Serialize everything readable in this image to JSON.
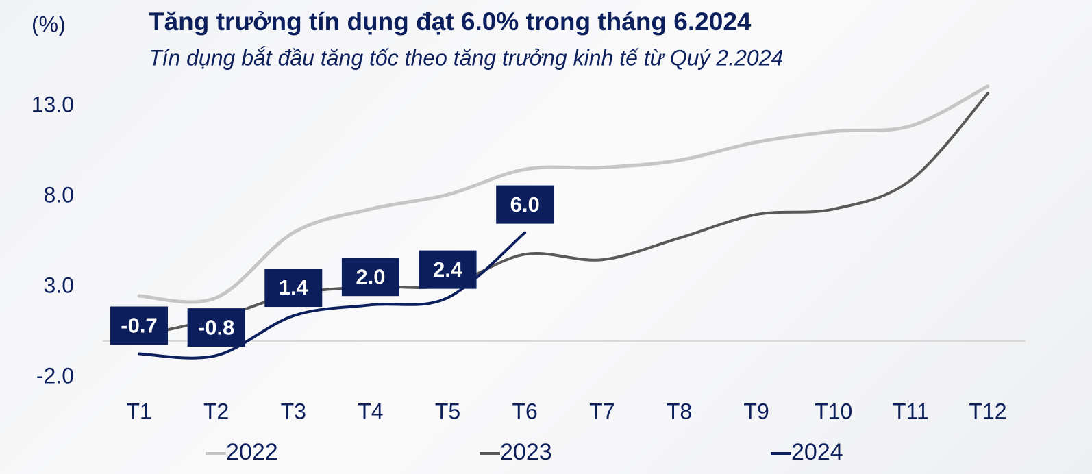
{
  "chart_data": {
    "type": "line",
    "unit_label": "(%)",
    "title": "Tăng trưởng tín dụng đạt 6.0% trong tháng 6.2024",
    "subtitle": "Tín dụng bắt đầu tăng tốc theo tăng trưởng kinh tế từ Quý 2.2024",
    "categories": [
      "T1",
      "T2",
      "T3",
      "T4",
      "T5",
      "T6",
      "T7",
      "T8",
      "T9",
      "T10",
      "T11",
      "T12"
    ],
    "series": [
      {
        "name": "2022",
        "color": "#c6c6c6",
        "values": [
          2.5,
          2.4,
          6.0,
          7.3,
          8.1,
          9.5,
          9.6,
          10.0,
          11.0,
          11.6,
          11.9,
          14.1
        ]
      },
      {
        "name": "2023",
        "color": "#595959",
        "values": [
          0.3,
          1.25,
          2.6,
          3.0,
          3.1,
          4.8,
          4.5,
          5.7,
          7.0,
          7.3,
          8.9,
          13.7
        ]
      },
      {
        "name": "2024",
        "color": "#0c1f5c",
        "values": [
          -0.7,
          -0.8,
          1.4,
          2.0,
          2.4,
          6.0,
          null,
          null,
          null,
          null,
          null,
          null
        ],
        "value_labels": [
          "-0.7",
          "-0.8",
          "1.4",
          "2.0",
          "2.4",
          "6.0",
          null,
          null,
          null,
          null,
          null,
          null
        ]
      }
    ],
    "ylim": [
      -3,
      15
    ],
    "yticks": [
      {
        "value": -2,
        "label": "-2.0"
      },
      {
        "value": 3,
        "label": "3.0"
      },
      {
        "value": 8,
        "label": "8.0"
      },
      {
        "value": 13,
        "label": "13.0"
      }
    ],
    "grid": false,
    "legend": "bottom"
  }
}
